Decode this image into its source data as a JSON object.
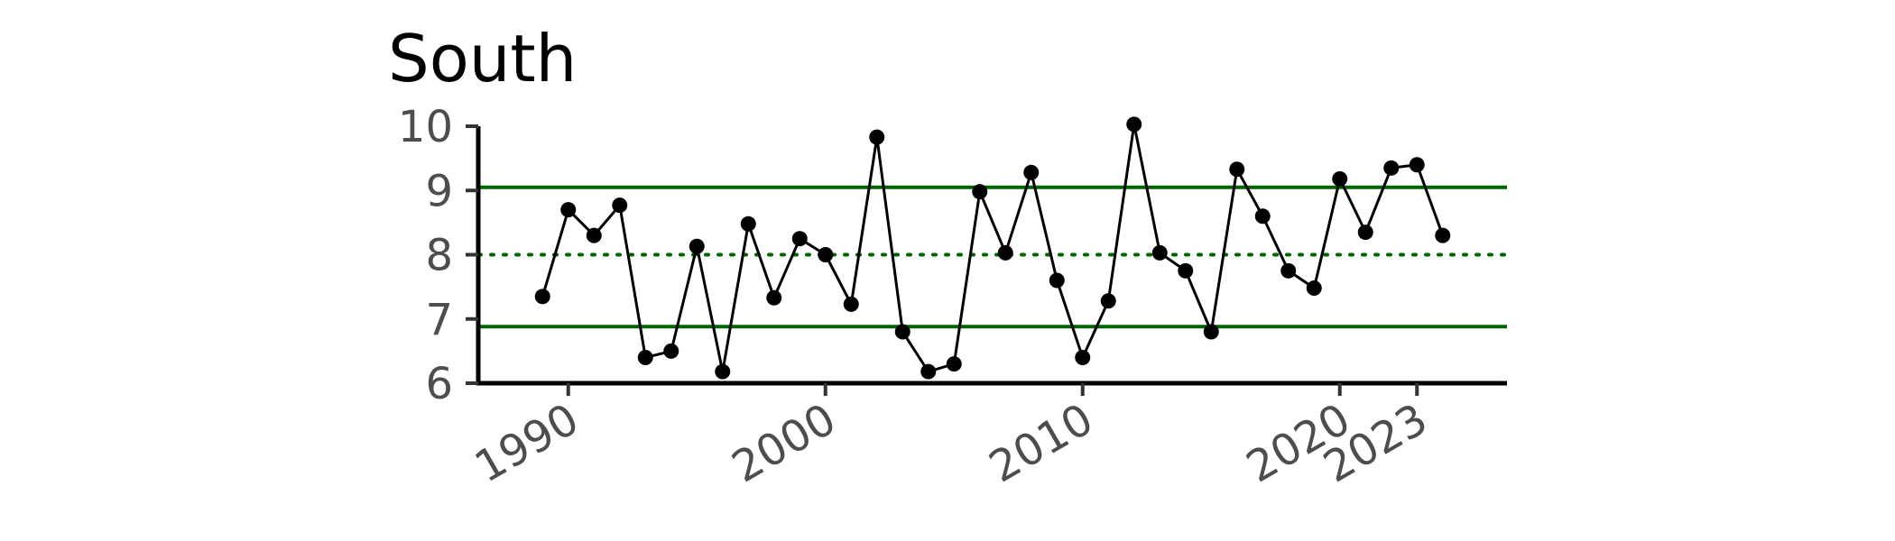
{
  "chart_data": {
    "type": "line",
    "title": "South",
    "xlabel": "",
    "ylabel": "",
    "xlim": [
      1986.5,
      2026.5
    ],
    "ylim": [
      6,
      10
    ],
    "x_ticks": [
      1990,
      2000,
      2010,
      2020,
      2023
    ],
    "y_ticks": [
      6,
      7,
      8,
      9,
      10
    ],
    "grid": false,
    "legend": "none",
    "series": [
      {
        "x": [
          1989,
          1990,
          1991,
          1992,
          1993,
          1994,
          1995,
          1996,
          1997,
          1998,
          1999,
          2000,
          2001,
          2002,
          2003,
          2004,
          2005,
          2006,
          2007,
          2008,
          2009,
          2010,
          2011,
          2012,
          2013,
          2014,
          2015,
          2016,
          2017,
          2018,
          2019,
          2020,
          2021,
          2022,
          2023,
          2024
        ],
        "values": [
          7.35,
          8.7,
          8.3,
          8.77,
          6.4,
          6.5,
          8.13,
          6.18,
          8.48,
          7.33,
          8.25,
          8.0,
          7.23,
          9.83,
          6.8,
          6.18,
          6.3,
          8.98,
          8.03,
          9.28,
          7.6,
          6.4,
          7.28,
          10.03,
          8.03,
          7.75,
          6.8,
          9.33,
          8.6,
          7.75,
          7.48,
          9.18,
          8.35,
          9.35,
          9.4,
          8.3
        ]
      }
    ],
    "reference_lines": [
      {
        "y": 9.05,
        "style": "solid"
      },
      {
        "y": 8.0,
        "style": "dotted"
      },
      {
        "y": 6.88,
        "style": "solid"
      }
    ],
    "colors": {
      "line": "#000000",
      "points": "#000000",
      "reference": "#006400",
      "axis": "#000000",
      "tick_label": "#4d4d4d"
    }
  }
}
